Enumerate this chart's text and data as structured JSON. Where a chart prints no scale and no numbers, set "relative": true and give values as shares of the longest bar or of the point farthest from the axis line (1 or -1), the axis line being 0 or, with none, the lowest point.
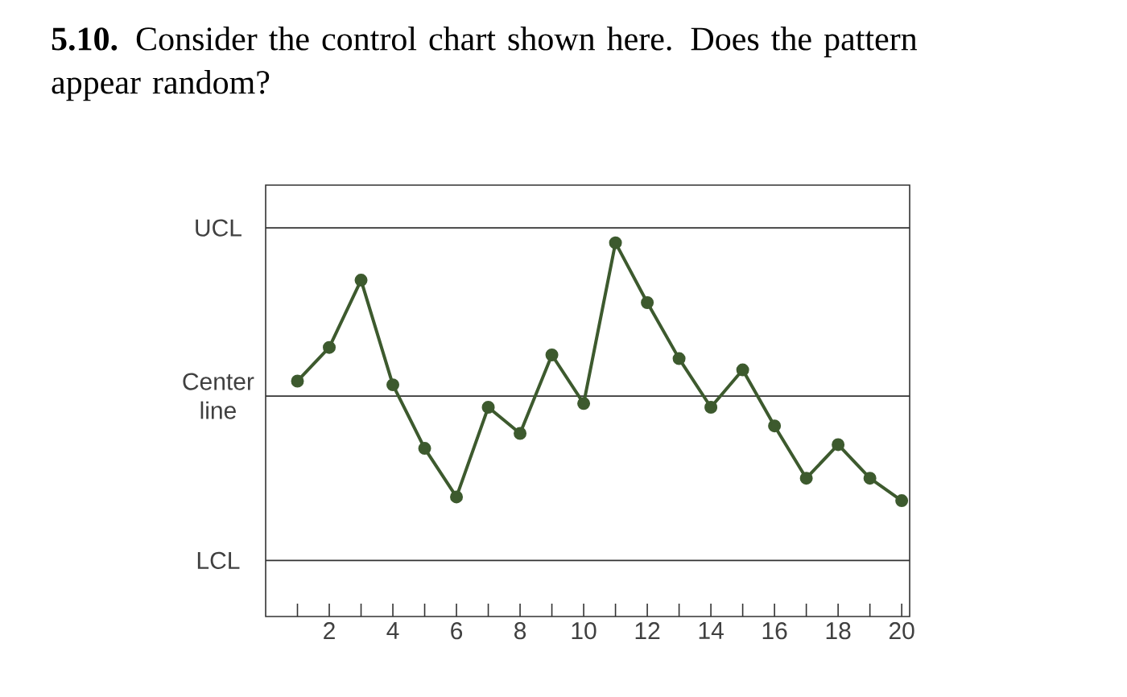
{
  "chart_data": {
    "type": "line",
    "title": "**5.10.** Consider the control chart shown here. Does the pattern appear random?",
    "x": [
      1,
      2,
      3,
      4,
      5,
      6,
      7,
      8,
      9,
      10,
      11,
      12,
      13,
      14,
      15,
      16,
      17,
      18,
      19,
      20
    ],
    "series": [
      {
        "color": "#3d5a2e",
        "values": [
          0.63,
          0.72,
          0.9,
          0.62,
          0.45,
          0.32,
          0.56,
          0.49,
          0.7,
          0.57,
          1,
          0.84,
          0.69,
          0.56,
          0.66,
          0.51,
          0.37,
          0.46,
          0.37,
          0.31
        ]
      }
    ],
    "relative": true,
    "xlim": [
      0,
      20.25
    ],
    "xticks": [
      {
        "value": 1,
        "label": null
      },
      2,
      {
        "value": 3,
        "label": null
      },
      4,
      {
        "value": 5,
        "label": null
      },
      6,
      {
        "value": 7,
        "label": null
      },
      8,
      {
        "value": 9,
        "label": null
      },
      10,
      {
        "value": 11,
        "label": null
      },
      12,
      {
        "value": 13,
        "label": null
      },
      14,
      {
        "value": 15,
        "label": null
      },
      16,
      {
        "value": 17,
        "label": null
      },
      18,
      {
        "value": 19,
        "label": null
      },
      20
    ],
    "ref_lines": [
      {
        "axis": "y",
        "value": 1.04,
        "label": "UCL",
        "color": "#333333"
      },
      {
        "axis": "y",
        "value": 0.59,
        "label": "Center line",
        "color": "#333333"
      },
      {
        "axis": "y",
        "value": 0.15,
        "label": "LCL",
        "color": "#333333"
      }
    ],
    "marker": "circle",
    "line_style": "solid",
    "grid": false
  }
}
